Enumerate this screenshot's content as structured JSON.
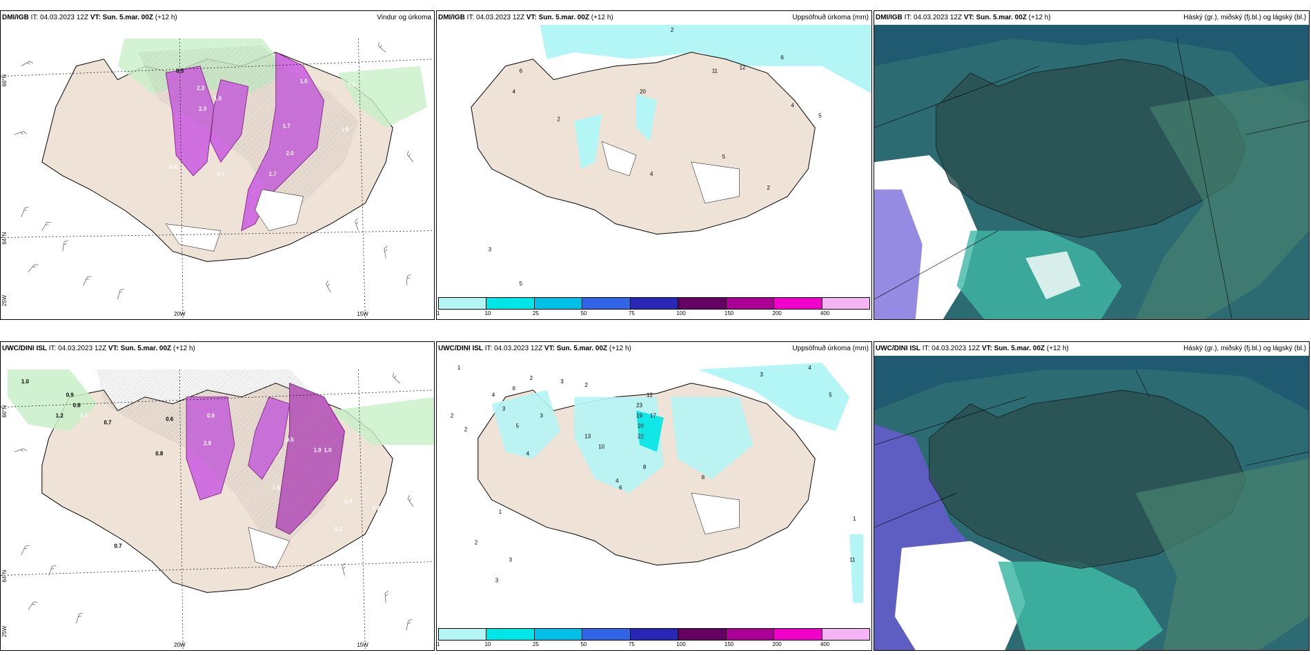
{
  "panels": [
    {
      "id": "p1",
      "model": "DMI/IGB",
      "it_label": "IT:",
      "it_value": "04.03.2023 12Z",
      "vt_label": "VT:",
      "vt_value": "Sun. 5.mar. 00Z",
      "lead": "(+12 h)",
      "product": "Vindur og úrkoma"
    },
    {
      "id": "p2",
      "model": "DMI/IGB",
      "it_label": "IT:",
      "it_value": "04.03.2023 12Z",
      "vt_label": "VT:",
      "vt_value": "Sun. 5.mar. 00Z",
      "lead": "(+12 h)",
      "product": "Uppsöfnuð úrkoma (mm)"
    },
    {
      "id": "p3",
      "model": "DMI/IGB",
      "it_label": "IT:",
      "it_value": "04.03.2023 12Z",
      "vt_label": "VT:",
      "vt_value": "Sun. 5.mar. 00Z",
      "lead": "(+12 h)",
      "product": "Háský (gr.), miðský (fj.bl.) og lágský (bl.)"
    },
    {
      "id": "p4",
      "model": "UWC/DINI ISL",
      "it_label": "IT:",
      "it_value": "04.03.2023 12Z",
      "vt_label": "VT:",
      "vt_value": "Sun. 5.mar. 00Z",
      "lead": "(+12 h)",
      "product": ""
    },
    {
      "id": "p5",
      "model": "UWC/DINI ISL",
      "it_label": "IT:",
      "it_value": "04.03.2023 12Z",
      "vt_label": "VT:",
      "vt_value": "Sun. 5.mar. 00Z",
      "lead": "(+12 h)",
      "product": "Uppsöfnuð úrkoma (mm)"
    },
    {
      "id": "p6",
      "model": "UWC/DINI ISL",
      "it_label": "IT:",
      "it_value": "04.03.2023 12Z",
      "vt_label": "VT:",
      "vt_value": "Sun. 5.mar. 00Z",
      "lead": "(+12 h)",
      "product": "Háský (gr.), miðský (fj.bl.) og lágský (bl.)"
    }
  ],
  "axis": {
    "lat66": "66°N",
    "lat64": "64°N",
    "lon20": "20W",
    "lon15": "15W",
    "lon25": "25W"
  },
  "legend": {
    "ticks": [
      "1",
      "10",
      "25",
      "50",
      "75",
      "100",
      "150",
      "200",
      "400"
    ],
    "colors": [
      "#b4f5f5",
      "#00e6e6",
      "#00bee6",
      "#3264e6",
      "#2828b4",
      "#640064",
      "#aa0096",
      "#f000c8",
      "#f5b4f5"
    ]
  },
  "values": {
    "p1": [
      "0.5",
      "2.3",
      "1.9",
      "2.0",
      "1.0",
      "1.7",
      "0.8",
      "1.9",
      "0.4",
      "0.7",
      "2.3",
      "1.7"
    ],
    "p2": [
      "2",
      "6",
      "4",
      "2",
      "20",
      "11",
      "12",
      "6",
      "4",
      "5",
      "5",
      "4",
      "2",
      "3",
      "5"
    ],
    "p4": [
      "1.0",
      "0.9",
      "0.8",
      "0.9",
      "0.7",
      "1.2",
      "0.6",
      "0.8",
      "0.9",
      "2.0",
      "0.5",
      "1.9",
      "1.0",
      "0.7",
      "0.4",
      "0.3",
      "1.5",
      "0.7"
    ],
    "p5": [
      "1",
      "2",
      "2",
      "4",
      "6",
      "3",
      "2",
      "3",
      "23",
      "12",
      "17",
      "19",
      "20",
      "22",
      "13",
      "10",
      "3",
      "8",
      "2",
      "4",
      "5",
      "8",
      "6",
      "4",
      "1",
      "3",
      "2",
      "3",
      "4",
      "5",
      "3",
      "1",
      "11"
    ]
  }
}
